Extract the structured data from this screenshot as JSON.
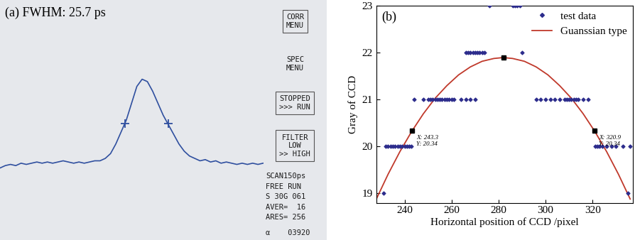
{
  "chart_data": [
    {
      "type": "line",
      "title": "(a) FWHM: 25.7 ps",
      "color": "#2f4f9f",
      "tick_labels": false,
      "xlim": [
        0,
        100
      ],
      "ylim": [
        0,
        100
      ],
      "x": [
        0,
        2,
        4,
        6,
        8,
        10,
        12,
        14,
        16,
        18,
        20,
        22,
        24,
        26,
        28,
        30,
        32,
        34,
        36,
        38,
        40,
        42,
        44,
        46,
        48,
        50,
        52,
        54,
        56,
        58,
        60,
        62,
        64,
        66,
        68,
        70,
        72,
        74,
        76,
        78,
        80,
        82,
        84,
        86,
        88,
        90,
        92,
        94,
        96,
        98,
        100
      ],
      "values": [
        30,
        31,
        31.5,
        31,
        32,
        31.5,
        32,
        32.5,
        32,
        32.5,
        32,
        32.5,
        33,
        32.5,
        32,
        32.5,
        32,
        32.5,
        33,
        33,
        34,
        36,
        40,
        45,
        50,
        57,
        64,
        67,
        66,
        62,
        57,
        52,
        48,
        44,
        40,
        37,
        35,
        34,
        33,
        33.5,
        32.5,
        33,
        32,
        32.5,
        32,
        31.5,
        32,
        31.5,
        32,
        31.5,
        32
      ],
      "fwhm_marks": {
        "x": [
          47.5,
          64
        ],
        "y": [
          48.5,
          48.5
        ]
      },
      "annotations": [
        "CORR\nMENU",
        "SPEC\nMENU",
        "STOPPED\n>>> RUN",
        "FILTER\nLOW\n>> HIGH",
        "SCAN150ps",
        "FREE RUN",
        "S 30G 061",
        "AVER=  16",
        "ARES= 256",
        "α    03920"
      ]
    },
    {
      "type": "scatter",
      "title": "(b)",
      "xlabel": "Horizontal position of CCD /pixel",
      "ylabel": "Gray of CCD",
      "xlim": [
        228,
        337
      ],
      "xticks": [
        240,
        260,
        280,
        300,
        320
      ],
      "ylim": [
        18.8,
        23
      ],
      "yticks": [
        19,
        20,
        21,
        22,
        23
      ],
      "legend": "upper right",
      "series": [
        {
          "name": "test data",
          "type": "scatter",
          "color": "#2c2c8c",
          "marker": "D",
          "x": [
            231,
            335,
            232,
            233,
            234,
            235,
            236,
            237,
            238,
            239,
            240,
            241,
            242,
            243,
            321,
            322,
            323,
            324,
            326,
            328,
            330,
            333,
            336,
            244,
            248,
            250,
            251,
            252,
            253,
            254,
            255,
            256,
            257,
            258,
            259,
            260,
            261,
            264,
            266,
            268,
            270,
            296,
            298,
            300,
            302,
            304,
            306,
            308,
            309,
            310,
            311,
            312,
            313,
            314,
            316,
            318,
            266,
            267,
            268,
            269,
            270,
            271,
            272,
            273,
            274,
            290,
            276,
            286,
            287,
            288,
            289
          ],
          "values": [
            19,
            19,
            20,
            20,
            20,
            20,
            20,
            20,
            20,
            20,
            20,
            20,
            20,
            20,
            20,
            20,
            20,
            20,
            20,
            20,
            20,
            20,
            20,
            21,
            21,
            21,
            21,
            21,
            21,
            21,
            21,
            21,
            21,
            21,
            21,
            21,
            21,
            21,
            21,
            21,
            21,
            21,
            21,
            21,
            21,
            21,
            21,
            21,
            21,
            21,
            21,
            21,
            21,
            21,
            21,
            21,
            22,
            22,
            22,
            22,
            22,
            22,
            22,
            22,
            22,
            22,
            23,
            23,
            23,
            23,
            23
          ]
        },
        {
          "name": "Guanssian type",
          "type": "line",
          "color": "#c0392b",
          "line_style": "solid",
          "x": [
            228,
            233,
            238,
            243,
            248,
            253,
            258,
            263,
            268,
            273,
            278,
            282,
            286,
            291,
            296,
            301,
            306,
            311,
            316,
            321,
            326,
            331,
            336
          ],
          "values": [
            18.88,
            19.41,
            19.89,
            20.32,
            20.7,
            21.03,
            21.3,
            21.53,
            21.7,
            21.82,
            21.88,
            21.9,
            21.88,
            21.82,
            21.7,
            21.53,
            21.3,
            21.03,
            20.7,
            20.32,
            19.89,
            19.41,
            18.88
          ]
        }
      ],
      "points": [
        {
          "x": 243.3,
          "y": 20.34,
          "labels": [
            "X: 243.3",
            "Y: 20.34"
          ]
        },
        {
          "x": 282,
          "y": 21.9
        },
        {
          "x": 320.9,
          "y": 20.34,
          "labels": [
            "X: 320.9",
            "Y: 20.34"
          ]
        }
      ]
    }
  ]
}
